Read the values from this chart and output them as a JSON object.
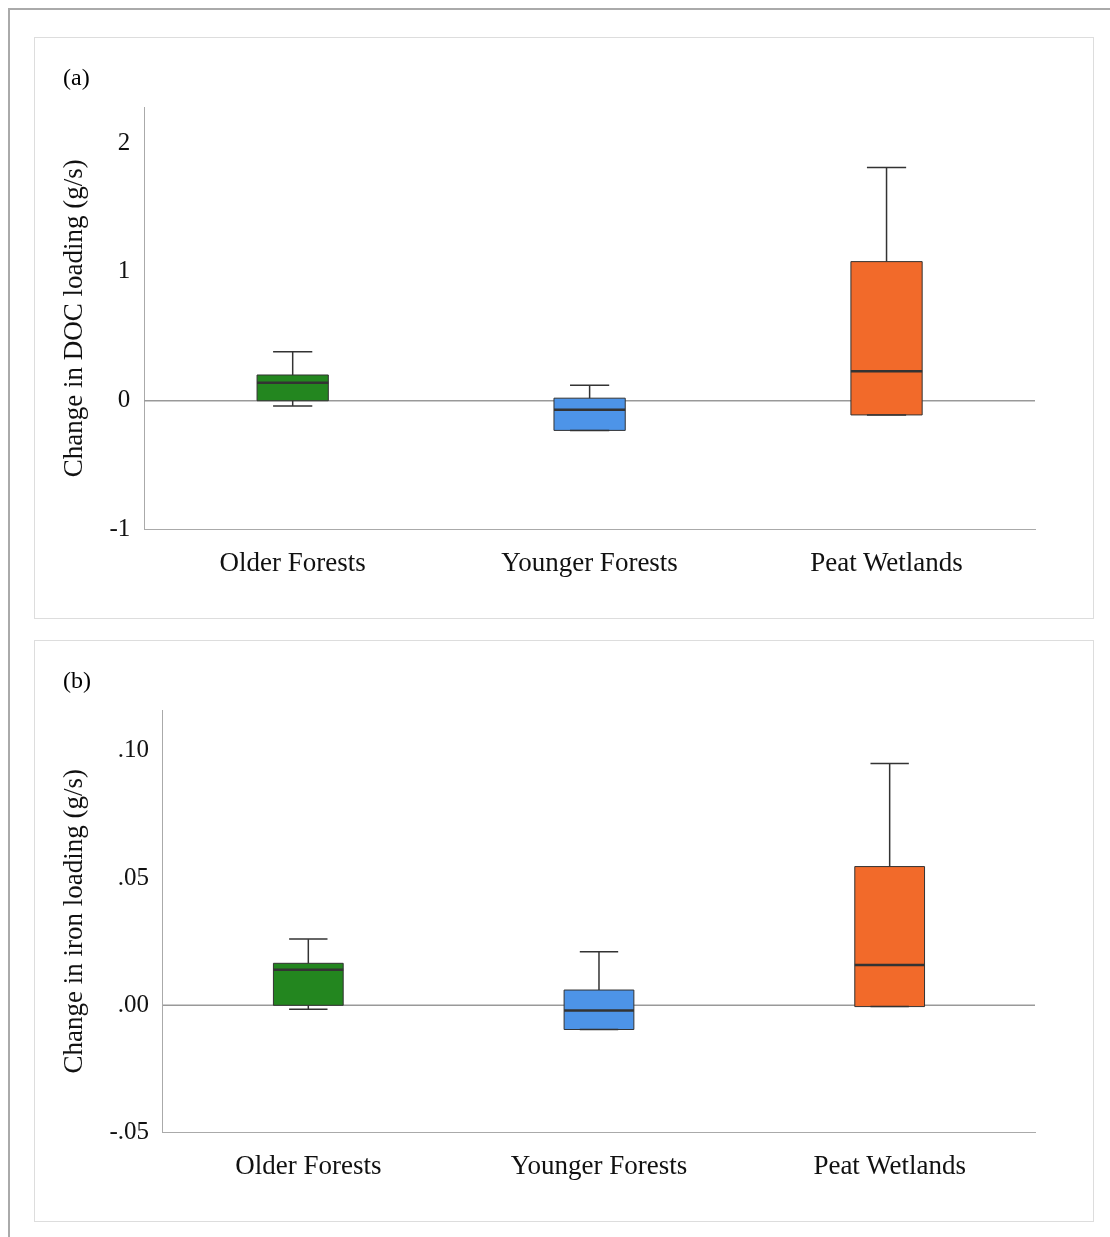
{
  "chart_data": [
    {
      "type": "box",
      "title": "(a)",
      "ylabel": "Change in DOC loading (g/s)",
      "categories": [
        "Older Forests",
        "Younger Forests",
        "Peat Wetlands"
      ],
      "colors": [
        "#23861f",
        "#4d94e8",
        "#f26a2a"
      ],
      "boxes": [
        {
          "low": -0.04,
          "q1": 0,
          "median": 0.14,
          "q3": 0.2,
          "high": 0.38
        },
        {
          "low": -0.23,
          "q1": -0.23,
          "median": -0.07,
          "q3": 0.02,
          "high": 0.12
        },
        {
          "low": -0.11,
          "q1": -0.11,
          "median": 0.23,
          "q3": 1.08,
          "high": 1.81
        }
      ],
      "ylim": [
        -1,
        2.28
      ],
      "yticks": [
        -1,
        0,
        1,
        2
      ],
      "grid": false,
      "ref_lines": [
        {
          "axis": "y",
          "value": 0,
          "color": "#999999"
        }
      ]
    },
    {
      "type": "box",
      "title": "(b)",
      "ylabel": "Change in iron loading (g/s)",
      "categories": [
        "Older Forests",
        "Younger Forests",
        "Peat Wetlands"
      ],
      "colors": [
        "#23861f",
        "#4d94e8",
        "#f26a2a"
      ],
      "boxes": [
        {
          "low": -0.0015,
          "q1": 0,
          "median": 0.014,
          "q3": 0.0165,
          "high": 0.026
        },
        {
          "low": -0.0095,
          "q1": -0.0095,
          "median": -0.002,
          "q3": 0.006,
          "high": 0.021
        },
        {
          "low": -0.0005,
          "q1": -0.0005,
          "median": 0.0158,
          "q3": 0.0545,
          "high": 0.095
        }
      ],
      "ylim": [
        -0.05,
        0.116
      ],
      "yticks": [
        {
          "value": -0.05,
          "label": "-.05"
        },
        {
          "value": 0,
          "label": ".00"
        },
        {
          "value": 0.05,
          "label": ".05"
        },
        {
          "value": 0.1,
          "label": ".10"
        }
      ],
      "grid": false,
      "ref_lines": [
        {
          "axis": "y",
          "value": 0,
          "color": "#999999"
        }
      ]
    }
  ]
}
